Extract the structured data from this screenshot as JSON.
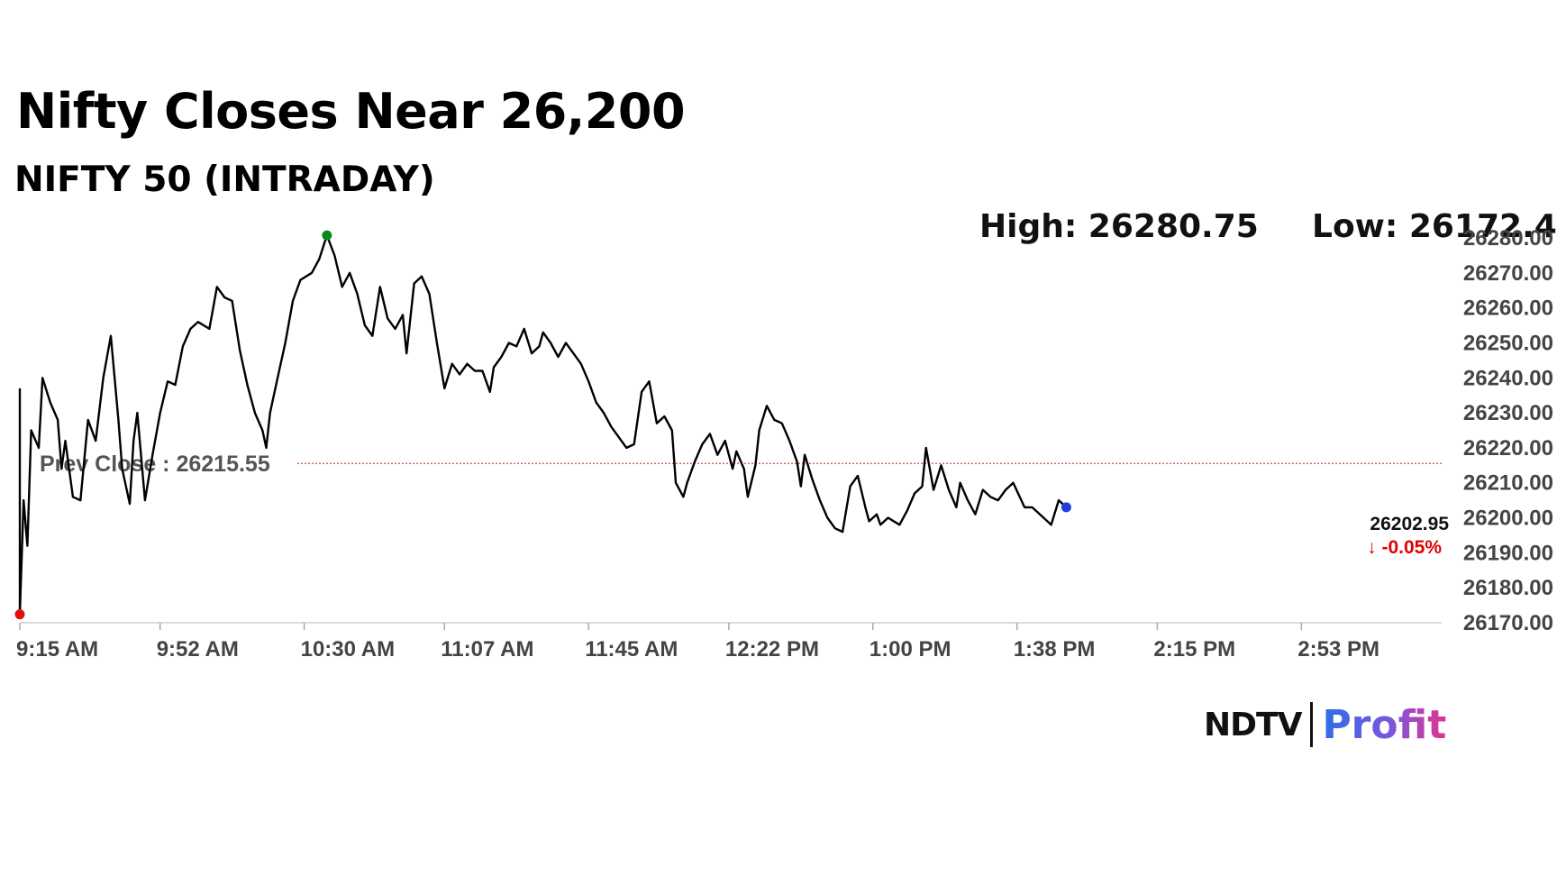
{
  "header": {
    "title": "Nifty Closes Near 26,200",
    "subtitle": "NIFTY 50 (INTRADAY)",
    "high_label": "High: 26280.75",
    "low_label": "Low: 26172.40"
  },
  "chart_data": {
    "type": "line",
    "x_ticks": [
      "9:15 AM",
      "9:52 AM",
      "10:30 AM",
      "11:07 AM",
      "11:45 AM",
      "12:22 PM",
      "1:00 PM",
      "1:38 PM",
      "2:15 PM",
      "2:53 PM"
    ],
    "y_ticks": [
      "26280.00",
      "26270.00",
      "26260.00",
      "26250.00",
      "26240.00",
      "26230.00",
      "26220.00",
      "26210.00",
      "26200.00",
      "26190.00",
      "26180.00",
      "26170.00"
    ],
    "ylim": [
      26170,
      26280
    ],
    "series": [
      {
        "points": [
          [
            "9:15 AM",
            26237
          ],
          [
            "9:15 AM",
            26172.4
          ],
          [
            "9:16 AM",
            26205
          ],
          [
            "9:17 AM",
            26192
          ],
          [
            "9:18 AM",
            26225
          ],
          [
            "9:20 AM",
            26220
          ],
          [
            "9:21 AM",
            26240
          ],
          [
            "9:23 AM",
            26233
          ],
          [
            "9:25 AM",
            26228
          ],
          [
            "9:26 AM",
            26214
          ],
          [
            "9:27 AM",
            26222
          ],
          [
            "9:29 AM",
            26206
          ],
          [
            "9:31 AM",
            26205
          ],
          [
            "9:33 AM",
            26228
          ],
          [
            "9:35 AM",
            26222
          ],
          [
            "9:37 AM",
            26240
          ],
          [
            "9:39 AM",
            26252
          ],
          [
            "9:41 AM",
            26228
          ],
          [
            "9:42 AM",
            26214
          ],
          [
            "9:44 AM",
            26204
          ],
          [
            "9:45 AM",
            26222
          ],
          [
            "9:46 AM",
            26230
          ],
          [
            "9:48 AM",
            26205
          ],
          [
            "9:50 AM",
            26218
          ],
          [
            "9:52 AM",
            26230
          ],
          [
            "9:54 AM",
            26239
          ],
          [
            "9:56 AM",
            26238
          ],
          [
            "9:58 AM",
            26249
          ],
          [
            "10:00 AM",
            26254
          ],
          [
            "10:02 AM",
            26256
          ],
          [
            "10:05 AM",
            26254
          ],
          [
            "10:07 AM",
            26266
          ],
          [
            "10:09 AM",
            26263
          ],
          [
            "10:11 AM",
            26262
          ],
          [
            "10:13 AM",
            26248
          ],
          [
            "10:15 AM",
            26238
          ],
          [
            "10:17 AM",
            26230
          ],
          [
            "10:19 AM",
            26225
          ],
          [
            "10:20 AM",
            26220
          ],
          [
            "10:21 AM",
            26230
          ],
          [
            "10:23 AM",
            26240
          ],
          [
            "10:25 AM",
            26250
          ],
          [
            "10:27 AM",
            26262
          ],
          [
            "10:29 AM",
            26268
          ],
          [
            "10:32 AM",
            26270
          ],
          [
            "10:34 AM",
            26274
          ],
          [
            "10:36 AM",
            26280.75
          ],
          [
            "10:38 AM",
            26275
          ],
          [
            "10:40 AM",
            26266
          ],
          [
            "10:42 AM",
            26270
          ],
          [
            "10:44 AM",
            26264
          ],
          [
            "10:46 AM",
            26255
          ],
          [
            "10:48 AM",
            26252
          ],
          [
            "10:50 AM",
            26266
          ],
          [
            "10:52 AM",
            26257
          ],
          [
            "10:54 AM",
            26254
          ],
          [
            "10:56 AM",
            26258
          ],
          [
            "10:57 AM",
            26247
          ],
          [
            "10:59 AM",
            26267
          ],
          [
            "11:01 AM",
            26269
          ],
          [
            "11:03 AM",
            26264
          ],
          [
            "11:05 AM",
            26250
          ],
          [
            "11:07 AM",
            26237
          ],
          [
            "11:09 AM",
            26244
          ],
          [
            "11:11 AM",
            26241
          ],
          [
            "11:13 AM",
            26244
          ],
          [
            "11:15 AM",
            26242
          ],
          [
            "11:17 AM",
            26242
          ],
          [
            "11:19 AM",
            26236
          ],
          [
            "11:20 AM",
            26243
          ],
          [
            "11:22 AM",
            26246
          ],
          [
            "11:24 AM",
            26250
          ],
          [
            "11:26 AM",
            26249
          ],
          [
            "11:28 AM",
            26254
          ],
          [
            "11:30 AM",
            26247
          ],
          [
            "11:32 AM",
            26249
          ],
          [
            "11:33 AM",
            26253
          ],
          [
            "11:35 AM",
            26250
          ],
          [
            "11:37 AM",
            26246
          ],
          [
            "11:39 AM",
            26250
          ],
          [
            "11:41 AM",
            26247
          ],
          [
            "11:43 AM",
            26244
          ],
          [
            "11:45 AM",
            26239
          ],
          [
            "11:47 AM",
            26233
          ],
          [
            "11:49 AM",
            26230
          ],
          [
            "11:51 AM",
            26226
          ],
          [
            "11:53 AM",
            26223
          ],
          [
            "11:55 AM",
            26220
          ],
          [
            "11:57 AM",
            26221
          ],
          [
            "11:59 AM",
            26236
          ],
          [
            "12:01 PM",
            26239
          ],
          [
            "12:03 PM",
            26227
          ],
          [
            "12:05 PM",
            26229
          ],
          [
            "12:07 PM",
            26225
          ],
          [
            "12:08 PM",
            26210
          ],
          [
            "12:10 PM",
            26206
          ],
          [
            "12:11 PM",
            26210
          ],
          [
            "12:13 PM",
            26216
          ],
          [
            "12:15 PM",
            26221
          ],
          [
            "12:17 PM",
            26224
          ],
          [
            "12:19 PM",
            26218
          ],
          [
            "12:21 PM",
            26222
          ],
          [
            "12:23 PM",
            26214
          ],
          [
            "12:24 PM",
            26219
          ],
          [
            "12:26 PM",
            26214
          ],
          [
            "12:27 PM",
            26206
          ],
          [
            "12:29 PM",
            26215
          ],
          [
            "12:30 PM",
            26225
          ],
          [
            "12:32 PM",
            26232
          ],
          [
            "12:34 PM",
            26228
          ],
          [
            "12:36 PM",
            26227
          ],
          [
            "12:38 PM",
            26222
          ],
          [
            "12:40 PM",
            26216
          ],
          [
            "12:41 PM",
            26209
          ],
          [
            "12:42 PM",
            26218
          ],
          [
            "12:44 PM",
            26211
          ],
          [
            "12:46 PM",
            26205
          ],
          [
            "12:48 PM",
            26200
          ],
          [
            "12:50 PM",
            26197
          ],
          [
            "12:52 PM",
            26196
          ],
          [
            "12:54 PM",
            26209
          ],
          [
            "12:56 PM",
            26212
          ],
          [
            "12:58 PM",
            26203
          ],
          [
            "12:59 PM",
            26199
          ],
          [
            "1:01 PM",
            26201
          ],
          [
            "1:02 PM",
            26198
          ],
          [
            "1:04 PM",
            26200
          ],
          [
            "1:07 PM",
            26198
          ],
          [
            "1:09 PM",
            26202
          ],
          [
            "1:11 PM",
            26207
          ],
          [
            "1:13 PM",
            26209
          ],
          [
            "1:14 PM",
            26220
          ],
          [
            "1:16 PM",
            26208
          ],
          [
            "1:18 PM",
            26215
          ],
          [
            "1:20 PM",
            26208
          ],
          [
            "1:22 PM",
            26203
          ],
          [
            "1:23 PM",
            26210
          ],
          [
            "1:25 PM",
            26205
          ],
          [
            "1:27 PM",
            26201
          ],
          [
            "1:29 PM",
            26208
          ],
          [
            "1:31 PM",
            26206
          ],
          [
            "1:33 PM",
            26205
          ],
          [
            "1:35 PM",
            26208
          ],
          [
            "1:37 PM",
            26210
          ],
          [
            "1:40 PM",
            26203
          ],
          [
            "1:42 PM",
            26203
          ],
          [
            "1:45 PM",
            26200
          ],
          [
            "1:47 PM",
            26198
          ],
          [
            "1:49 PM",
            26205
          ],
          [
            "1:51 PM",
            26203
          ]
        ]
      }
    ],
    "annotations": {
      "prev_close_label": "Prev Close : 26215.55",
      "prev_close_value": 26215.55,
      "last_price": "26202.95",
      "last_value": 26202.95,
      "change": "↓ -0.05%"
    },
    "colors": {
      "line": "#000000",
      "prev_close_line": "#c0392b",
      "high_marker": "#0a8a1a",
      "low_marker": "#e01010",
      "last_marker": "#1f3fd9",
      "change": "#e00000"
    },
    "grid": false
  },
  "brand": {
    "left": "NDTV",
    "right": "Profit"
  }
}
